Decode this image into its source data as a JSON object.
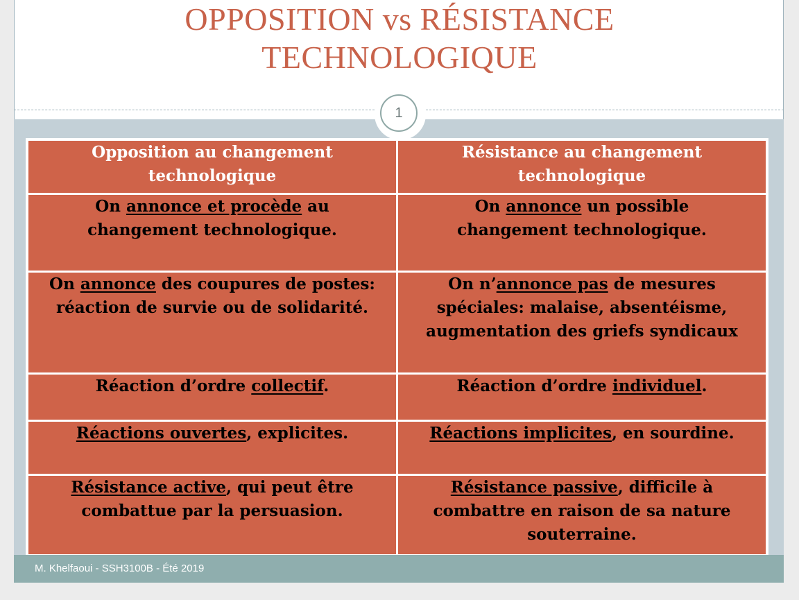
{
  "slide": {
    "title_line1": "OPPOSITION vs RÉSISTANCE",
    "title_line2": "TECHNOLOGIQUE",
    "slide_number": "1",
    "footer": "M. Khelfaoui - SSH3100B - Été 2019"
  },
  "table": {
    "headers": [
      [
        "Opposition au changement",
        "technologique"
      ],
      [
        "Résistance au changement",
        "technologique"
      ]
    ],
    "rows": [
      {
        "left": [
          [
            "On "
          ],
          [
            "annonce et procède",
            "u"
          ],
          [
            " au changement technologique."
          ]
        ],
        "right": [
          [
            "On "
          ],
          [
            "annonce",
            "u"
          ],
          [
            " un possible changement technologique."
          ]
        ]
      },
      {
        "left": [
          [
            "On "
          ],
          [
            "annonce",
            "u"
          ],
          [
            " des coupures de postes: réaction de survie ou de solidarité."
          ]
        ],
        "right": [
          [
            "On n’"
          ],
          [
            "annonce pas",
            "u"
          ],
          [
            " de mesures spéciales: malaise, absentéisme, augmentation des griefs syndicaux"
          ]
        ]
      },
      {
        "left": [
          [
            "Réaction d’ordre "
          ],
          [
            "collectif",
            "u"
          ],
          [
            "."
          ]
        ],
        "right": [
          [
            "Réaction d’ordre "
          ],
          [
            "individuel",
            "u"
          ],
          [
            "."
          ]
        ]
      },
      {
        "left": [
          [
            "Réactions ouvertes",
            "u"
          ],
          [
            ", explicites."
          ]
        ],
        "right": [
          [
            "Réactions implicites",
            "u"
          ],
          [
            ", en sourdine."
          ]
        ]
      },
      {
        "left": [
          [
            "Résistance active",
            "u"
          ],
          [
            ", qui peut être combattue par la persuasion."
          ]
        ],
        "right": [
          [
            "Résistance passive",
            "u"
          ],
          [
            ", difficile à combattre en raison de sa nature souterraine."
          ]
        ]
      }
    ]
  },
  "colors": {
    "title": "#c8624a",
    "cell": "#cf6349",
    "background": "#c3d0d7",
    "footer": "#8faeae"
  }
}
